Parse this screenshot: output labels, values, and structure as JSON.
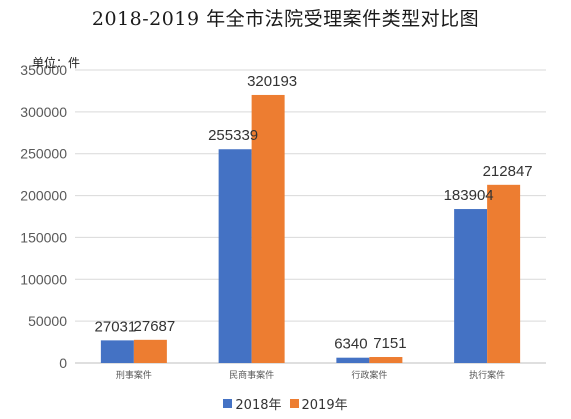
{
  "chart_data": {
    "type": "bar",
    "title": "2018-2019 年全市法院受理案件类型对比图",
    "unit_label": "单位：件",
    "categories": [
      "刑事案件",
      "民商事案件",
      "行政案件",
      "执行案件"
    ],
    "series": [
      {
        "name": "2018年",
        "color": "#4472C4",
        "values": [
          27031,
          255339,
          6340,
          183904
        ]
      },
      {
        "name": "2019年",
        "color": "#ED7D31",
        "values": [
          27687,
          320193,
          7151,
          212847
        ]
      }
    ],
    "ylim": [
      0,
      350000
    ],
    "yticks": [
      "0",
      "50000",
      "100000",
      "150000",
      "200000",
      "250000",
      "300000",
      "350000"
    ],
    "grid": true,
    "legend_position": "bottom"
  }
}
